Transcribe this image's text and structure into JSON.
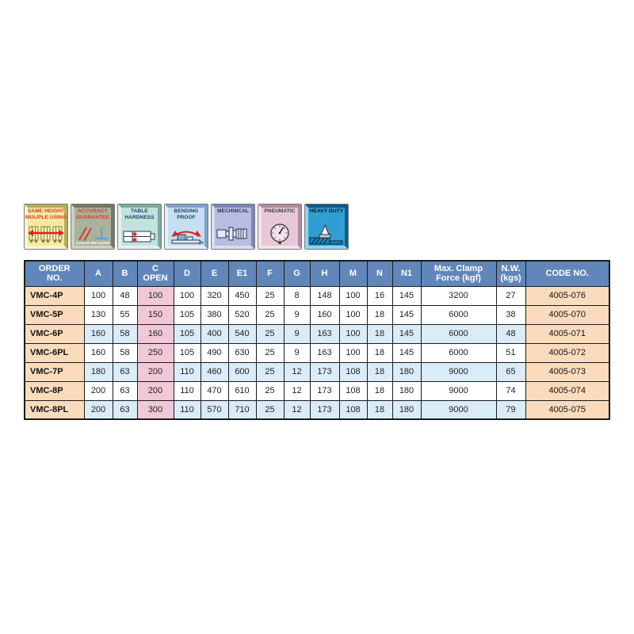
{
  "page": {
    "background": "#ffffff"
  },
  "icons": [
    {
      "name": "same-height-multiple-using",
      "label": "SAME HEIGHT\nMULIPLE USING",
      "colors": {
        "bg": "#f0eb9e",
        "bevel_light": "#faf6cf",
        "bevel_dark": "#b5ad55",
        "label": "#d93a2b"
      }
    },
    {
      "name": "accuracy-guarantee",
      "label": "ACCURACY\nGUARANTEE",
      "sub_text": "0,01/100 MM  0,02/50",
      "colors": {
        "bg": "#a9b29c",
        "bevel_light": "#ccd3c1",
        "bevel_dark": "#6e7a62",
        "label": "#d93a2b"
      }
    },
    {
      "name": "table-hardness",
      "label": "TABLE\nHARDNESS",
      "colors": {
        "bg": "#c2e2dd",
        "bevel_light": "#e3f2ef",
        "bevel_dark": "#79aaa4",
        "label": "#23406b"
      }
    },
    {
      "name": "bending-proof",
      "label": "BENDING\nPROOF",
      "colors": {
        "bg": "#c5dff2",
        "bevel_light": "#e3f0fa",
        "bevel_dark": "#7ba3c9",
        "label": "#23406b"
      }
    },
    {
      "name": "mechnical",
      "label": "MECHNICAL",
      "colors": {
        "bg": "#b7bce1",
        "bevel_light": "#dadcf0",
        "bevel_dark": "#7e84b8",
        "label": "#2a2f55"
      }
    },
    {
      "name": "pneumatic",
      "label": "PNEUMATIC",
      "colors": {
        "bg": "#e7c7d8",
        "bevel_light": "#f5e3ed",
        "bevel_dark": "#b289a2",
        "label": "#3a3a3a"
      }
    },
    {
      "name": "heavy-duty",
      "label": "HEAVY DUTY",
      "colors": {
        "bg": "#2f9fd3",
        "bevel_light": "#8fd4f2",
        "bevel_dark": "#0f5a84",
        "label": "#111111"
      }
    }
  ],
  "table": {
    "colors": {
      "header_bg": "#6186ba",
      "header_text": "#ffffff",
      "order_col_bg": "#fadcbd",
      "open_col_bg": "#f0c8d8",
      "tint_row_bg": "#d9ecf8",
      "grid": "#1c1c1c"
    },
    "headers": [
      "ORDER\nNO.",
      "A",
      "B",
      "C\nOPEN",
      "D",
      "E",
      "E1",
      "F",
      "G",
      "H",
      "M",
      "N",
      "N1",
      "Max. Clamp\nForce (kgf)",
      "N.W.\n(kgs)",
      "CODE NO."
    ],
    "rows": [
      {
        "order": "VMC-4P",
        "values": [
          "100",
          "48",
          "100",
          "100",
          "320",
          "450",
          "25",
          "8",
          "148",
          "100",
          "16",
          "145",
          "3200",
          "27"
        ],
        "code": "4005-076",
        "tint": false
      },
      {
        "order": "VMC-5P",
        "values": [
          "130",
          "55",
          "150",
          "105",
          "380",
          "520",
          "25",
          "9",
          "160",
          "100",
          "18",
          "145",
          "6000",
          "38"
        ],
        "code": "4005-070",
        "tint": false
      },
      {
        "order": "VMC-6P",
        "values": [
          "160",
          "58",
          "160",
          "105",
          "400",
          "540",
          "25",
          "9",
          "163",
          "100",
          "18",
          "145",
          "6000",
          "48"
        ],
        "code": "4005-071",
        "tint": true
      },
      {
        "order": "VMC-6PL",
        "values": [
          "160",
          "58",
          "250",
          "105",
          "490",
          "630",
          "25",
          "9",
          "163",
          "100",
          "18",
          "145",
          "6000",
          "51"
        ],
        "code": "4005-072",
        "tint": false
      },
      {
        "order": "VMC-7P",
        "values": [
          "180",
          "63",
          "200",
          "110",
          "460",
          "600",
          "25",
          "12",
          "173",
          "108",
          "18",
          "180",
          "9000",
          "65"
        ],
        "code": "4005-073",
        "tint": true
      },
      {
        "order": "VMC-8P",
        "values": [
          "200",
          "63",
          "200",
          "110",
          "470",
          "610",
          "25",
          "12",
          "173",
          "108",
          "18",
          "180",
          "9000",
          "74"
        ],
        "code": "4005-074",
        "tint": false
      },
      {
        "order": "VMC-8PL",
        "values": [
          "200",
          "63",
          "300",
          "110",
          "570",
          "710",
          "25",
          "12",
          "173",
          "108",
          "18",
          "180",
          "9000",
          "79"
        ],
        "code": "4005-075",
        "tint": true
      }
    ]
  }
}
